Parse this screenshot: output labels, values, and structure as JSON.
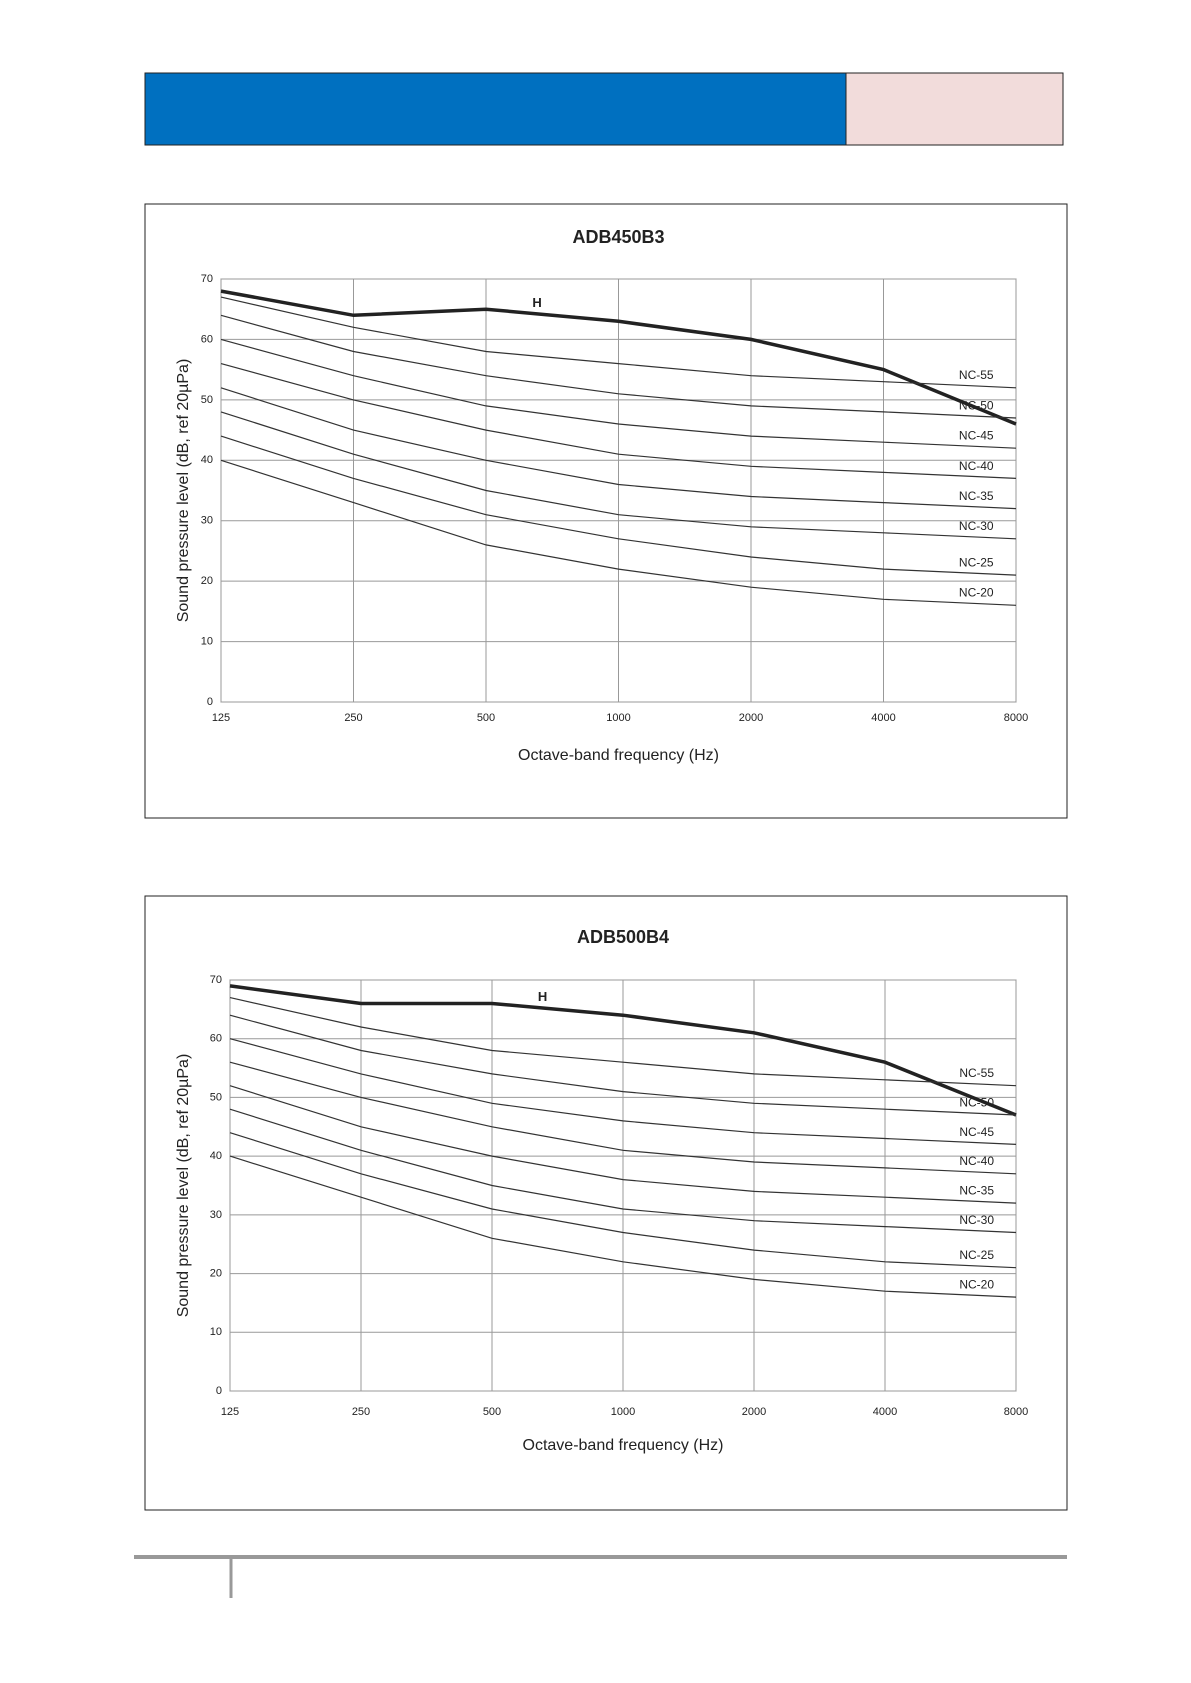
{
  "chart_data": [
    {
      "type": "line",
      "title": "ADB450B3",
      "x_label": "Octave-band frequency (Hz)",
      "y_label": "Sound pressure level (dB, ref 20µPa)",
      "x": [
        125,
        250,
        500,
        1000,
        2000,
        4000,
        8000
      ],
      "xscale": "log",
      "xlim": [
        125,
        8000
      ],
      "xticks": [
        125,
        250,
        500,
        1000,
        2000,
        4000,
        8000
      ],
      "ylim": [
        0,
        70
      ],
      "yticks": [
        0,
        10,
        20,
        30,
        40,
        50,
        60,
        70
      ],
      "grid": true,
      "series": [
        {
          "name": "H",
          "color": "#222222",
          "values": [
            68,
            64,
            65,
            63,
            60,
            55,
            46
          ]
        },
        {
          "name": "NC-55",
          "color": "#333333",
          "values": [
            67,
            62,
            58,
            56,
            54,
            53,
            52
          ]
        },
        {
          "name": "NC-50",
          "color": "#333333",
          "values": [
            64,
            58,
            54,
            51,
            49,
            48,
            47
          ]
        },
        {
          "name": "NC-45",
          "color": "#333333",
          "values": [
            60,
            54,
            49,
            46,
            44,
            43,
            42
          ]
        },
        {
          "name": "NC-40",
          "color": "#333333",
          "values": [
            56,
            50,
            45,
            41,
            39,
            38,
            37
          ]
        },
        {
          "name": "NC-35",
          "color": "#333333",
          "values": [
            52,
            45,
            40,
            36,
            34,
            33,
            32
          ]
        },
        {
          "name": "NC-30",
          "color": "#333333",
          "values": [
            48,
            41,
            35,
            31,
            29,
            28,
            27
          ]
        },
        {
          "name": "NC-25",
          "color": "#333333",
          "values": [
            44,
            37,
            31,
            27,
            24,
            22,
            21
          ]
        },
        {
          "name": "NC-20",
          "color": "#333333",
          "values": [
            40,
            33,
            26,
            22,
            19,
            17,
            16
          ]
        }
      ]
    },
    {
      "type": "line",
      "title": "ADB500B4",
      "x_label": "Octave-band frequency (Hz)",
      "y_label": "Sound pressure level (dB, ref 20µPa)",
      "x": [
        125,
        250,
        500,
        1000,
        2000,
        4000,
        8000
      ],
      "xscale": "log",
      "xlim": [
        125,
        8000
      ],
      "xticks": [
        125,
        250,
        500,
        1000,
        2000,
        4000,
        8000
      ],
      "ylim": [
        0,
        70
      ],
      "yticks": [
        0,
        10,
        20,
        30,
        40,
        50,
        60,
        70
      ],
      "grid": true,
      "series": [
        {
          "name": "H",
          "color": "#222222",
          "values": [
            69,
            66,
            66,
            64,
            61,
            56,
            47
          ]
        },
        {
          "name": "NC-55",
          "color": "#333333",
          "values": [
            67,
            62,
            58,
            56,
            54,
            53,
            52
          ]
        },
        {
          "name": "NC-50",
          "color": "#333333",
          "values": [
            64,
            58,
            54,
            51,
            49,
            48,
            47
          ]
        },
        {
          "name": "NC-45",
          "color": "#333333",
          "values": [
            60,
            54,
            49,
            46,
            44,
            43,
            42
          ]
        },
        {
          "name": "NC-40",
          "color": "#333333",
          "values": [
            56,
            50,
            45,
            41,
            39,
            38,
            37
          ]
        },
        {
          "name": "NC-35",
          "color": "#333333",
          "values": [
            52,
            45,
            40,
            36,
            34,
            33,
            32
          ]
        },
        {
          "name": "NC-30",
          "color": "#333333",
          "values": [
            48,
            41,
            35,
            31,
            29,
            28,
            27
          ]
        },
        {
          "name": "NC-25",
          "color": "#333333",
          "values": [
            44,
            37,
            31,
            27,
            24,
            22,
            21
          ]
        },
        {
          "name": "NC-20",
          "color": "#333333",
          "values": [
            40,
            33,
            26,
            22,
            19,
            17,
            16
          ]
        }
      ]
    }
  ]
}
